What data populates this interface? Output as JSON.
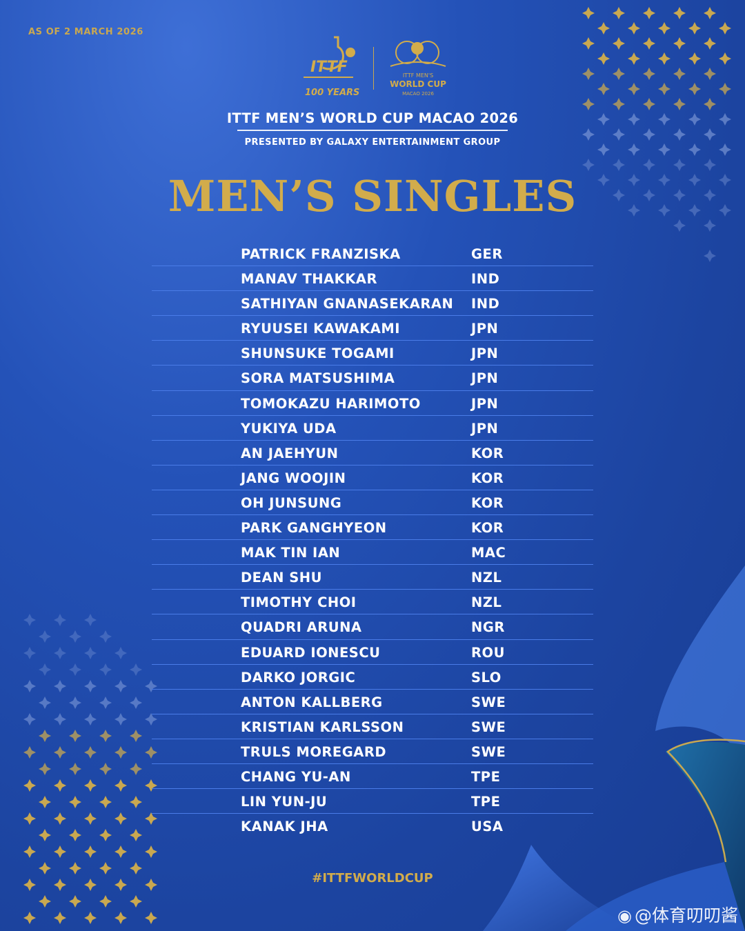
{
  "as_of": "AS OF 2 MARCH 2026",
  "logos": {
    "ittf_text": "ITTF",
    "ittf_sub": "100 YEARS",
    "wc_line1": "ITTF MEN'S",
    "wc_line2": "WORLD CUP",
    "wc_line3": "MACAO 2026"
  },
  "event_title": "ITTF MEN’S WORLD CUP MACAO 2026",
  "presented_by": "PRESENTED BY GALAXY ENTERTAINMENT GROUP",
  "section_title": "MEN’S SINGLES",
  "players": [
    {
      "name": "PATRICK FRANZISKA",
      "country": "GER"
    },
    {
      "name": "MANAV THAKKAR",
      "country": "IND"
    },
    {
      "name": "SATHIYAN GNANASEKARAN",
      "country": "IND"
    },
    {
      "name": "RYUUSEI KAWAKAMI",
      "country": "JPN"
    },
    {
      "name": "SHUNSUKE TOGAMI",
      "country": "JPN"
    },
    {
      "name": "SORA MATSUSHIMA",
      "country": "JPN"
    },
    {
      "name": "TOMOKAZU HARIMOTO",
      "country": "JPN"
    },
    {
      "name": "YUKIYA UDA",
      "country": "JPN"
    },
    {
      "name": "AN JAEHYUN",
      "country": "KOR"
    },
    {
      "name": "JANG WOOJIN",
      "country": "KOR"
    },
    {
      "name": "OH JUNSUNG",
      "country": "KOR"
    },
    {
      "name": "PARK GANGHYEON",
      "country": "KOR"
    },
    {
      "name": "MAK TIN IAN",
      "country": "MAC"
    },
    {
      "name": "DEAN SHU",
      "country": "NZL"
    },
    {
      "name": "TIMOTHY CHOI",
      "country": "NZL"
    },
    {
      "name": "QUADRI ARUNA",
      "country": "NGR"
    },
    {
      "name": "EDUARD IONESCU",
      "country": "ROU"
    },
    {
      "name": "DARKO JORGIC",
      "country": "SLO"
    },
    {
      "name": "ANTON KALLBERG",
      "country": "SWE"
    },
    {
      "name": "KRISTIAN KARLSSON",
      "country": "SWE"
    },
    {
      "name": "TRULS MOREGARD",
      "country": "SWE"
    },
    {
      "name": "CHANG YU-AN",
      "country": "TPE"
    },
    {
      "name": "LIN YUN-JU",
      "country": "TPE"
    },
    {
      "name": "KANAK JHA",
      "country": "USA"
    }
  ],
  "hashtag": "#ITTFWORLDCUP",
  "watermark": "@体育叨叨酱",
  "colors": {
    "gold": "#d2ac4b",
    "background": "#2452b8",
    "row_divider": "#4a7ce8"
  }
}
